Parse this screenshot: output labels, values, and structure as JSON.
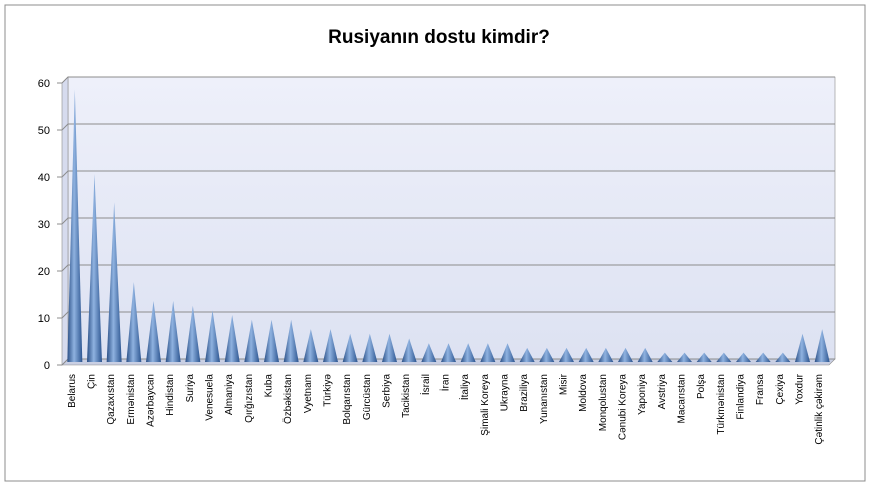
{
  "chart_data": {
    "type": "cone",
    "title": "Rusiyanın dostu kimdir?",
    "categories": [
      "Belarus",
      "Çin",
      "Qazaxıstan",
      "Ermənistan",
      "Azərbaycan",
      "Hindistan",
      "Suriya",
      "Venesuela",
      "Almaniya",
      "Qırğızıstan",
      "Kuba",
      "Özbəkistan",
      "Vyetnam",
      "Türkiyə",
      "Bolqarıstan",
      "Gürcüstan",
      "Serbiya",
      "Tacikistan",
      "İsrail",
      "İran",
      "İtaliya",
      "Şimali Koreya",
      "Ukrayna",
      "Braziliya",
      "Yunanıstan",
      "Misir",
      "Moldova",
      "Monqolustan",
      "Cənubi Koreya",
      "Yaponiya",
      "Avstriya",
      "Macarıstan",
      "Polşa",
      "Türkmənistan",
      "Finlandiya",
      "Fransa",
      "Çexiya",
      "Yoxdur",
      "Çətinlik çəkirəm"
    ],
    "values": [
      58,
      40,
      34,
      17,
      13,
      13,
      12,
      11,
      10,
      9,
      9,
      9,
      7,
      7,
      6,
      6,
      6,
      5,
      4,
      4,
      4,
      4,
      4,
      3,
      3,
      3,
      3,
      3,
      3,
      3,
      2,
      2,
      2,
      2,
      2,
      2,
      2,
      6,
      7
    ],
    "color": "#4f81bd",
    "ylim": [
      0,
      60
    ],
    "yticks": [
      0,
      10,
      20,
      30,
      40,
      50,
      60
    ],
    "grid": true
  }
}
